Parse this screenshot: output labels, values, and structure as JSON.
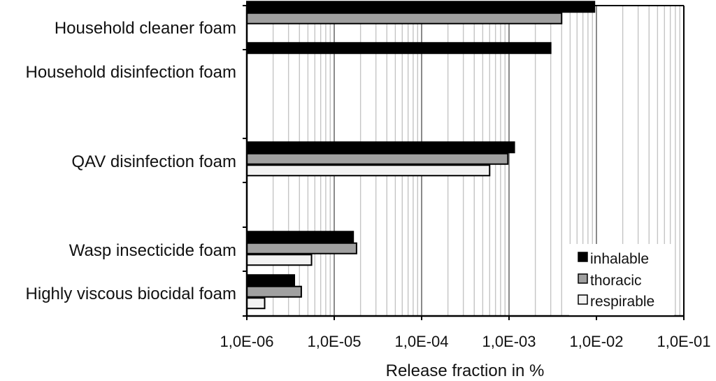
{
  "chart_data": {
    "type": "bar",
    "orientation": "horizontal",
    "title": "",
    "xlabel": "Release fraction in %",
    "ylabel": "",
    "xscale": "log",
    "xlim": [
      1e-06,
      0.1
    ],
    "x_tick_labels": [
      "1,0E-06",
      "1,0E-05",
      "1,0E-04",
      "1,0E-03",
      "1,0E-02",
      "1,0E-01"
    ],
    "grid": "vertical, major and minor",
    "legend_position": "bottom-right",
    "categories": [
      "Household cleaner foam",
      "Household disinfection foam",
      "QAV disinfection foam",
      "Wasp insecticide foam",
      "Highly viscous biocidal foam"
    ],
    "series": [
      {
        "name": "inhalable",
        "color": "#000000",
        "values": [
          0.0095,
          0.003,
          0.00115,
          1.65e-05,
          3.5e-06
        ]
      },
      {
        "name": "thoracic",
        "color": "#a0a0a0",
        "values": [
          0.004,
          null,
          0.00097,
          1.8e-05,
          4.2e-06
        ]
      },
      {
        "name": "respirable",
        "color": "#f2f2f2",
        "values": [
          null,
          null,
          0.0006,
          5.5e-06,
          1.6e-06
        ]
      }
    ]
  }
}
